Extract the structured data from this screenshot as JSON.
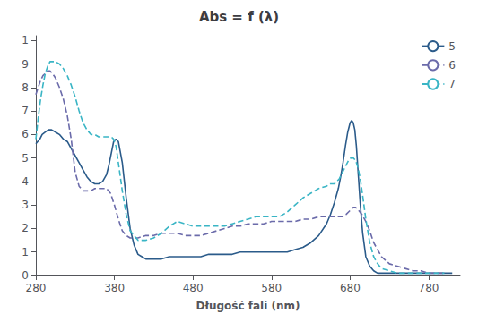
{
  "chart_data": {
    "type": "line",
    "title": "Abs = f (λ)",
    "xlabel": "Długość fali (nm)",
    "xlim": [
      280,
      820
    ],
    "ylim": [
      0,
      1.02
    ],
    "xticks": [
      280,
      380,
      480,
      580,
      680,
      780
    ],
    "yticks": [
      0,
      {
        "value": 0.1,
        "label": "1"
      },
      {
        "value": 0.2,
        "label": "2"
      },
      {
        "value": 0.3,
        "label": "3"
      },
      {
        "value": 0.4,
        "label": "4"
      },
      {
        "value": 0.5,
        "label": "5"
      },
      {
        "value": 0.6,
        "label": "6"
      },
      {
        "value": 0.7,
        "label": "7"
      },
      {
        "value": 0.8,
        "label": "8"
      },
      {
        "value": 0.9,
        "label": "9"
      },
      1
    ],
    "grid": false,
    "legend": "upper right",
    "series": [
      {
        "name": "5",
        "color": "#2b5b8a",
        "line_style": "solid",
        "x": [
          280,
          285,
          288,
          292,
          296,
          300,
          305,
          310,
          315,
          320,
          325,
          330,
          335,
          340,
          345,
          350,
          355,
          360,
          365,
          370,
          373,
          376,
          379,
          382,
          385,
          390,
          395,
          400,
          405,
          410,
          415,
          420,
          430,
          440,
          450,
          460,
          470,
          480,
          490,
          500,
          510,
          520,
          530,
          540,
          550,
          560,
          570,
          580,
          590,
          600,
          610,
          620,
          630,
          640,
          650,
          655,
          660,
          665,
          668,
          671,
          674,
          677,
          680,
          682,
          684,
          686,
          688,
          690,
          693,
          696,
          700,
          705,
          710,
          715,
          720,
          730,
          740,
          750,
          760,
          770,
          780,
          790,
          800,
          810
        ],
        "values": [
          0.56,
          0.58,
          0.6,
          0.61,
          0.62,
          0.62,
          0.61,
          0.6,
          0.58,
          0.57,
          0.54,
          0.51,
          0.48,
          0.45,
          0.42,
          0.4,
          0.39,
          0.39,
          0.4,
          0.43,
          0.47,
          0.52,
          0.57,
          0.58,
          0.57,
          0.48,
          0.33,
          0.2,
          0.13,
          0.09,
          0.08,
          0.07,
          0.07,
          0.07,
          0.08,
          0.08,
          0.08,
          0.08,
          0.08,
          0.09,
          0.09,
          0.09,
          0.09,
          0.1,
          0.1,
          0.1,
          0.1,
          0.1,
          0.1,
          0.1,
          0.11,
          0.12,
          0.14,
          0.17,
          0.22,
          0.26,
          0.31,
          0.37,
          0.42,
          0.48,
          0.55,
          0.61,
          0.65,
          0.66,
          0.65,
          0.62,
          0.55,
          0.45,
          0.3,
          0.18,
          0.08,
          0.04,
          0.02,
          0.01,
          0.01,
          0.01,
          0.01,
          0.01,
          0.01,
          0.01,
          0.01,
          0.01,
          0.01,
          0.01
        ]
      },
      {
        "name": "6",
        "color": "#6b6baa",
        "line_style": "dashed",
        "x": [
          280,
          283,
          286,
          289,
          292,
          295,
          298,
          301,
          305,
          310,
          315,
          320,
          325,
          330,
          335,
          340,
          345,
          350,
          355,
          360,
          365,
          370,
          375,
          380,
          385,
          390,
          395,
          400,
          410,
          420,
          430,
          440,
          450,
          460,
          470,
          480,
          490,
          500,
          510,
          520,
          530,
          540,
          550,
          560,
          570,
          580,
          590,
          600,
          610,
          620,
          630,
          640,
          650,
          660,
          665,
          670,
          675,
          678,
          681,
          684,
          687,
          690,
          695,
          700,
          705,
          710,
          720,
          730,
          740,
          750,
          760,
          770,
          780,
          790,
          800
        ],
        "values": [
          0.77,
          0.8,
          0.83,
          0.85,
          0.86,
          0.87,
          0.87,
          0.86,
          0.84,
          0.8,
          0.75,
          0.68,
          0.58,
          0.44,
          0.38,
          0.36,
          0.36,
          0.36,
          0.37,
          0.37,
          0.37,
          0.37,
          0.35,
          0.3,
          0.24,
          0.19,
          0.17,
          0.16,
          0.16,
          0.17,
          0.17,
          0.18,
          0.18,
          0.18,
          0.17,
          0.17,
          0.17,
          0.18,
          0.19,
          0.2,
          0.21,
          0.21,
          0.22,
          0.22,
          0.22,
          0.23,
          0.23,
          0.23,
          0.23,
          0.24,
          0.24,
          0.25,
          0.25,
          0.25,
          0.25,
          0.25,
          0.26,
          0.27,
          0.28,
          0.29,
          0.29,
          0.28,
          0.26,
          0.23,
          0.19,
          0.14,
          0.08,
          0.05,
          0.04,
          0.03,
          0.02,
          0.02,
          0.01,
          0.01,
          0.01
        ]
      },
      {
        "name": "7",
        "color": "#3ab5c5",
        "line_style": "dashed",
        "x": [
          280,
          283,
          286,
          289,
          292,
          295,
          298,
          301,
          305,
          310,
          315,
          320,
          325,
          330,
          335,
          340,
          345,
          350,
          355,
          360,
          365,
          370,
          373,
          376,
          379,
          382,
          385,
          390,
          395,
          400,
          410,
          420,
          430,
          440,
          450,
          460,
          470,
          480,
          490,
          500,
          510,
          520,
          530,
          540,
          550,
          560,
          570,
          580,
          590,
          600,
          610,
          620,
          630,
          640,
          650,
          655,
          660,
          663,
          666,
          669,
          672,
          675,
          678,
          681,
          684,
          687,
          690,
          693,
          696,
          700,
          705,
          710,
          715,
          720,
          730,
          740,
          750,
          760,
          770,
          780,
          790,
          800
        ],
        "values": [
          0.58,
          0.67,
          0.75,
          0.81,
          0.86,
          0.89,
          0.91,
          0.91,
          0.91,
          0.9,
          0.88,
          0.85,
          0.81,
          0.76,
          0.7,
          0.65,
          0.62,
          0.6,
          0.6,
          0.59,
          0.59,
          0.59,
          0.59,
          0.59,
          0.58,
          0.55,
          0.48,
          0.36,
          0.26,
          0.19,
          0.15,
          0.15,
          0.16,
          0.18,
          0.21,
          0.23,
          0.22,
          0.21,
          0.21,
          0.21,
          0.21,
          0.21,
          0.22,
          0.23,
          0.24,
          0.25,
          0.25,
          0.25,
          0.25,
          0.27,
          0.3,
          0.33,
          0.35,
          0.37,
          0.38,
          0.39,
          0.39,
          0.4,
          0.41,
          0.43,
          0.45,
          0.47,
          0.49,
          0.5,
          0.5,
          0.49,
          0.46,
          0.41,
          0.34,
          0.24,
          0.14,
          0.08,
          0.05,
          0.03,
          0.02,
          0.01,
          0.01,
          0.01,
          0.01,
          0.01,
          0.01,
          0.01
        ]
      }
    ]
  }
}
